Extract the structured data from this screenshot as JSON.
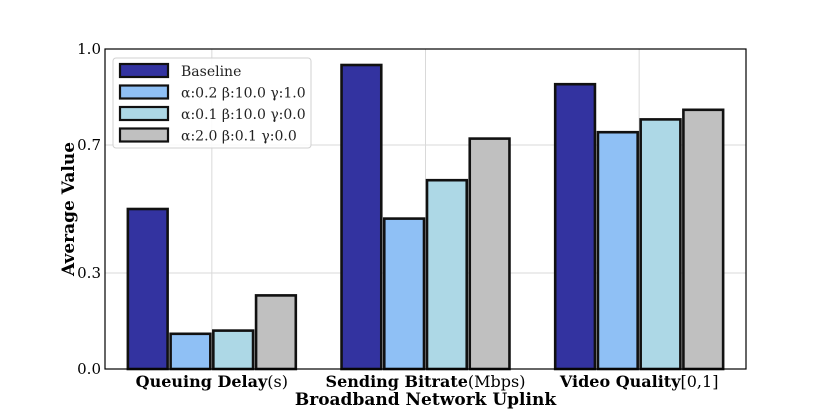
{
  "chart_data": {
    "type": "bar",
    "title": "",
    "xlabel": "Broadband Network Uplink",
    "ylabel": "Average Value",
    "ylim": [
      0.0,
      1.0
    ],
    "yticks": [
      "0.0",
      "0.3",
      "0.7",
      "1.0"
    ],
    "ytick_values": [
      0.0,
      0.3,
      0.7,
      1.0
    ],
    "grid": true,
    "legend_position": "top-left",
    "categories": [
      {
        "name": "Queuing Delay",
        "unit": "(s)"
      },
      {
        "name": "Sending Bitrate",
        "unit": "(Mbps)"
      },
      {
        "name": "Video Quality",
        "unit": "[0,1]"
      }
    ],
    "series": [
      {
        "name": "Baseline",
        "color": "#3333a0",
        "values": [
          0.5,
          0.95,
          0.89
        ]
      },
      {
        "name": "α:0.2 β:10.0 γ:1.0",
        "color": "#8fc0f5",
        "values": [
          0.11,
          0.47,
          0.74
        ]
      },
      {
        "name": "α:0.1 β:10.0 γ:0.0",
        "color": "#add8e6",
        "values": [
          0.12,
          0.59,
          0.78
        ]
      },
      {
        "name": "α:2.0 β:0.1 γ:0.0",
        "color": "#c0c0c0",
        "values": [
          0.23,
          0.72,
          0.81
        ]
      }
    ]
  }
}
